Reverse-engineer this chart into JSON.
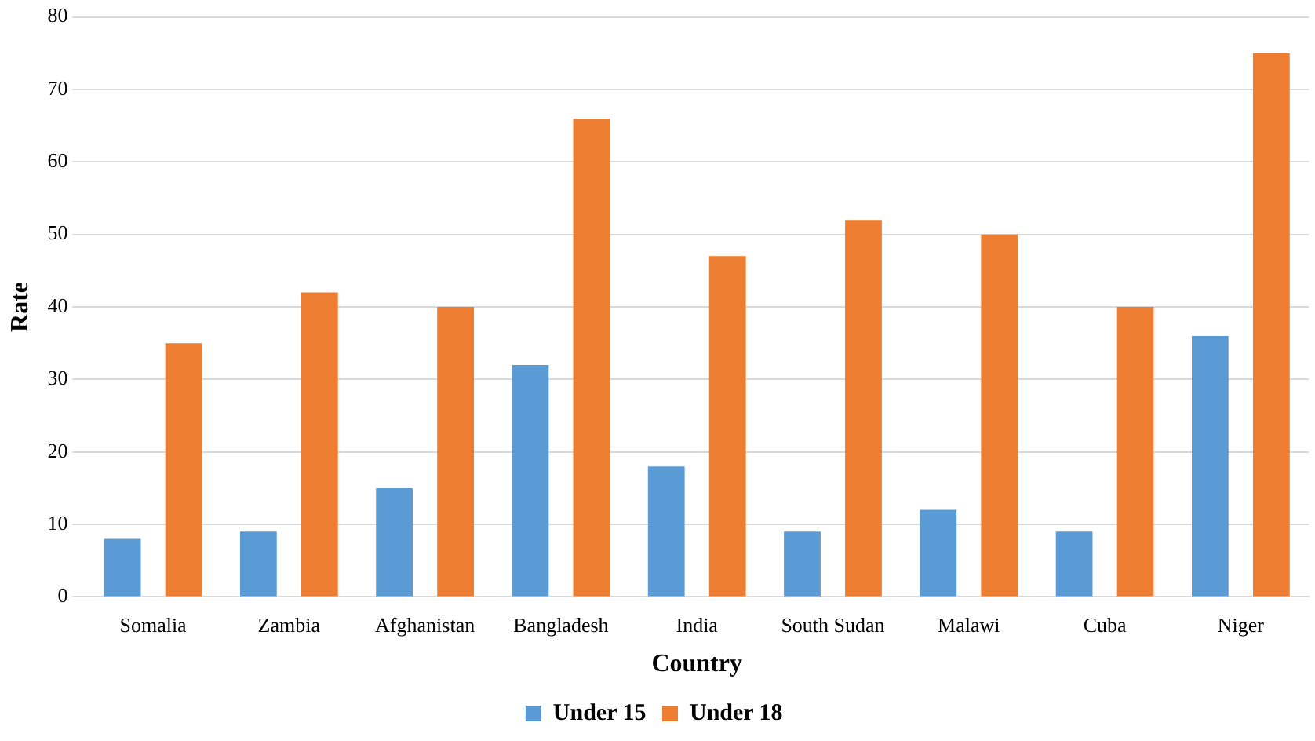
{
  "chart_data": {
    "type": "bar",
    "xlabel": "Country",
    "ylabel": "Rate",
    "categories": [
      "Somalia",
      "Zambia",
      "Afghanistan",
      "Bangladesh",
      "India",
      "South Sudan",
      "Malawi",
      "Cuba",
      "Niger"
    ],
    "series": [
      {
        "name": "Under 15",
        "color": "#5b9bd5",
        "values": [
          8,
          9,
          15,
          32,
          18,
          9,
          12,
          9,
          36
        ]
      },
      {
        "name": "Under 18",
        "color": "#ed7d31",
        "values": [
          35,
          42,
          40,
          66,
          47,
          52,
          50,
          40,
          75
        ]
      }
    ],
    "ylim": [
      0,
      80
    ],
    "yticks": [
      0,
      10,
      20,
      30,
      40,
      50,
      60,
      70,
      80
    ],
    "grid": "y",
    "legend": "bottom"
  }
}
